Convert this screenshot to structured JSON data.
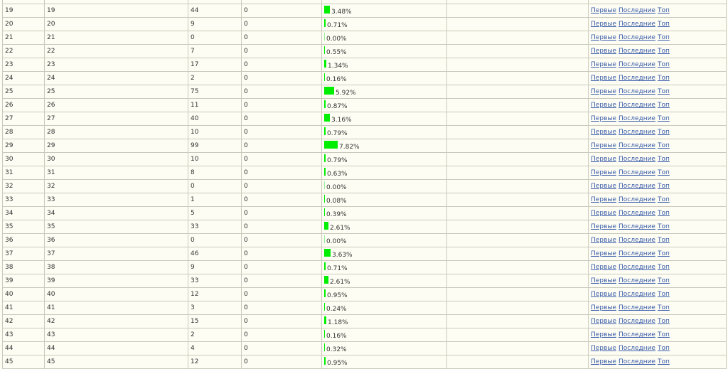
{
  "colors": {
    "bar": "#00ee00",
    "link": "#3a5caa"
  },
  "links": {
    "first": "Первые",
    "last": "Последние",
    "top": "Топ"
  },
  "rows": [
    [
      "19",
      "19",
      "44",
      "0",
      3.48
    ],
    [
      "20",
      "20",
      "9",
      "0",
      0.71
    ],
    [
      "21",
      "21",
      "0",
      "0",
      0.0
    ],
    [
      "22",
      "22",
      "7",
      "0",
      0.55
    ],
    [
      "23",
      "23",
      "17",
      "0",
      1.34
    ],
    [
      "24",
      "24",
      "2",
      "0",
      0.16
    ],
    [
      "25",
      "25",
      "75",
      "0",
      5.92
    ],
    [
      "26",
      "26",
      "11",
      "0",
      0.87
    ],
    [
      "27",
      "27",
      "40",
      "0",
      3.16
    ],
    [
      "28",
      "28",
      "10",
      "0",
      0.79
    ],
    [
      "29",
      "29",
      "99",
      "0",
      7.82
    ],
    [
      "30",
      "30",
      "10",
      "0",
      0.79
    ],
    [
      "31",
      "31",
      "8",
      "0",
      0.63
    ],
    [
      "32",
      "32",
      "0",
      "0",
      0.0
    ],
    [
      "33",
      "33",
      "1",
      "0",
      0.08
    ],
    [
      "34",
      "34",
      "5",
      "0",
      0.39
    ],
    [
      "35",
      "35",
      "33",
      "0",
      2.61
    ],
    [
      "36",
      "36",
      "0",
      "0",
      0.0
    ],
    [
      "37",
      "37",
      "46",
      "0",
      3.63
    ],
    [
      "38",
      "38",
      "9",
      "0",
      0.71
    ],
    [
      "39",
      "39",
      "33",
      "0",
      2.61
    ],
    [
      "40",
      "40",
      "12",
      "0",
      0.95
    ],
    [
      "41",
      "41",
      "3",
      "0",
      0.24
    ],
    [
      "42",
      "42",
      "15",
      "0",
      1.18
    ],
    [
      "43",
      "43",
      "2",
      "0",
      0.16
    ],
    [
      "44",
      "44",
      "4",
      "0",
      0.32
    ],
    [
      "45",
      "45",
      "12",
      "0",
      0.95
    ]
  ]
}
